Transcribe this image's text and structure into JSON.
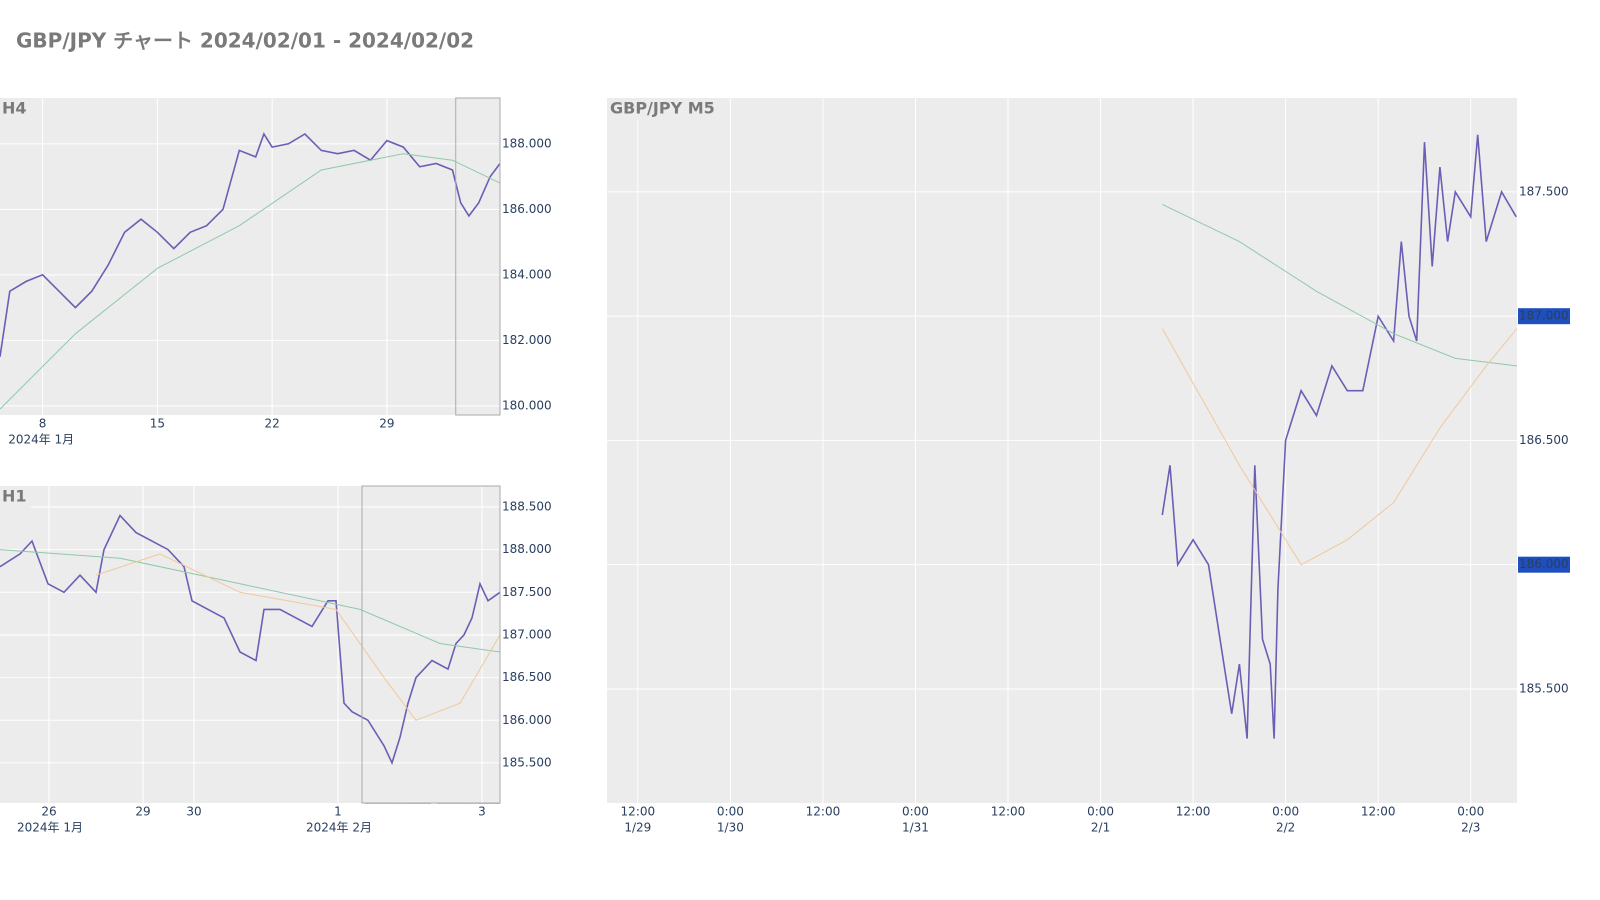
{
  "title": "GBP/JPY チャート 2024/02/01 - 2024/02/02",
  "chart_data": [
    {
      "type": "line",
      "title": "H4",
      "xlim": [
        5.4,
        35.9
      ],
      "xticks": [
        8,
        15,
        22,
        29
      ],
      "x_group_labels": [
        {
          "value": 5.9,
          "label": "2024年 1月"
        }
      ],
      "ylim": [
        179.72,
        189.4
      ],
      "yticks": [
        {
          "value": 188,
          "label": "188.000"
        },
        {
          "value": 186,
          "label": "186.000"
        },
        {
          "value": 184,
          "label": "184.000"
        },
        {
          "value": 182,
          "label": "182.000"
        },
        {
          "value": 180,
          "label": "180.000"
        }
      ],
      "highlight_range": [
        33.2,
        35.9
      ],
      "grid": true,
      "series": [
        {
          "color": "#6a5fb5",
          "x": [
            5.4,
            6,
            7,
            8,
            9,
            10,
            11,
            12,
            13,
            14,
            15,
            16,
            17,
            18,
            19,
            20,
            21,
            21.5,
            22,
            23,
            24,
            25,
            26,
            27,
            28,
            29,
            30,
            31,
            32,
            33,
            33.5,
            34,
            34.6,
            35.3,
            35.9
          ],
          "values": [
            181.5,
            183.5,
            183.8,
            184.0,
            183.5,
            183.0,
            183.5,
            184.3,
            185.3,
            185.7,
            185.3,
            184.8,
            185.3,
            185.5,
            186.0,
            187.8,
            187.6,
            188.3,
            187.9,
            188.0,
            188.3,
            187.8,
            187.7,
            187.8,
            187.5,
            188.1,
            187.9,
            187.3,
            187.4,
            187.2,
            186.2,
            185.8,
            186.2,
            187.0,
            187.4
          ]
        },
        {
          "color": "#8fc9a8",
          "x": [
            5.4,
            10,
            15,
            20,
            25,
            30,
            33,
            35.9
          ],
          "values": [
            179.9,
            182.2,
            184.2,
            185.5,
            187.2,
            187.7,
            187.5,
            186.8
          ]
        }
      ]
    },
    {
      "type": "line",
      "title": "H1",
      "xlim": [
        0,
        125
      ],
      "xticks": [
        {
          "value": 12.25,
          "label": "26"
        },
        {
          "value": 35.75,
          "label": "29"
        },
        {
          "value": 48.5,
          "label": "30"
        },
        {
          "value": 84.5,
          "label": "1"
        },
        {
          "value": 120.5,
          "label": "3"
        }
      ],
      "x_group_labels": [
        {
          "value": 4.25,
          "label": "2024年 1月"
        },
        {
          "value": 76.5,
          "label": "2024年 2月"
        }
      ],
      "ylim": [
        185.03,
        188.746
      ],
      "yticks": [
        {
          "value": 188.5,
          "label": "188.500"
        },
        {
          "value": 188,
          "label": "188.000"
        },
        {
          "value": 187.5,
          "label": "187.500"
        },
        {
          "value": 187,
          "label": "187.000"
        },
        {
          "value": 186.5,
          "label": "186.500"
        },
        {
          "value": 186,
          "label": "186.000"
        },
        {
          "value": 185.5,
          "label": "185.500"
        }
      ],
      "highlight_range": [
        90.5,
        125
      ],
      "grid": true,
      "series": [
        {
          "color": "#6a5fb5",
          "x": [
            0,
            5,
            8,
            12,
            16,
            20,
            24,
            26,
            30,
            34,
            38,
            42,
            46,
            48,
            52,
            56,
            60,
            64,
            66,
            70,
            74,
            78,
            82,
            84,
            86,
            88,
            92,
            96,
            98,
            100,
            102,
            104,
            108,
            112,
            114,
            116,
            118,
            120,
            122,
            125
          ],
          "values": [
            187.8,
            187.95,
            188.1,
            187.6,
            187.5,
            187.7,
            187.5,
            188.0,
            188.4,
            188.2,
            188.1,
            188.0,
            187.8,
            187.4,
            187.3,
            187.2,
            186.8,
            186.7,
            187.3,
            187.3,
            187.2,
            187.1,
            187.4,
            187.4,
            186.2,
            186.1,
            186.0,
            185.7,
            185.5,
            185.8,
            186.2,
            186.5,
            186.7,
            186.6,
            186.9,
            187.0,
            187.2,
            187.6,
            187.4,
            187.5
          ]
        },
        {
          "color": "#8fc9a8",
          "x": [
            0,
            30,
            60,
            90,
            110,
            125
          ],
          "values": [
            188.0,
            187.9,
            187.6,
            187.3,
            186.9,
            186.8
          ]
        },
        {
          "color": "#f0c89a",
          "x": [
            24,
            40,
            60,
            84,
            96,
            104,
            115,
            125
          ],
          "values": [
            187.7,
            187.95,
            187.5,
            187.3,
            186.5,
            186.0,
            186.2,
            187.0
          ]
        }
      ]
    },
    {
      "type": "line",
      "title": "GBP/JPY M5",
      "xlim": [
        8,
        126
      ],
      "xticks": [
        {
          "value": 12,
          "label": "12:00",
          "date": "1/29"
        },
        {
          "value": 24,
          "label": "0:00",
          "date": "1/30"
        },
        {
          "value": 36,
          "label": "12:00"
        },
        {
          "value": 48,
          "label": "0:00",
          "date": "1/31"
        },
        {
          "value": 60,
          "label": "12:00"
        },
        {
          "value": 72,
          "label": "0:00",
          "date": "2/1"
        },
        {
          "value": 84,
          "label": "12:00"
        },
        {
          "value": 96,
          "label": "0:00",
          "date": "2/2"
        },
        {
          "value": 108,
          "label": "12:00"
        },
        {
          "value": 120,
          "label": "0:00",
          "date": "2/3"
        }
      ],
      "ylim": [
        185.041,
        187.878
      ],
      "yticks": [
        {
          "value": 187.5,
          "label": "187.500"
        },
        {
          "value": 187,
          "label": "187.000",
          "highlight": true
        },
        {
          "value": 186.5,
          "label": "186.500"
        },
        {
          "value": 186,
          "label": "186.000",
          "highlight": true
        },
        {
          "value": 185.5,
          "label": "185.500"
        }
      ],
      "grid": true,
      "series": [
        {
          "color": "#6a5fb5",
          "x": [
            80,
            81,
            82,
            84,
            86,
            88,
            89,
            90,
            91,
            92,
            93,
            94,
            94.5,
            95,
            96,
            98,
            100,
            102,
            104,
            106,
            108,
            110,
            111,
            112,
            113,
            114,
            115,
            116,
            117,
            118,
            120,
            120.9,
            122,
            124,
            125.9
          ],
          "values": [
            186.2,
            186.4,
            186.0,
            186.1,
            186.0,
            185.6,
            185.4,
            185.6,
            185.3,
            186.4,
            185.7,
            185.6,
            185.3,
            185.9,
            186.5,
            186.7,
            186.6,
            186.8,
            186.7,
            186.7,
            187.0,
            186.9,
            187.3,
            187.0,
            186.9,
            187.7,
            187.2,
            187.6,
            187.3,
            187.5,
            187.4,
            187.73,
            187.3,
            187.5,
            187.4
          ]
        },
        {
          "color": "#8fc9a8",
          "x": [
            80,
            90,
            100,
            110,
            118,
            126
          ],
          "values": [
            187.45,
            187.3,
            187.1,
            186.93,
            186.83,
            186.8
          ]
        },
        {
          "color": "#f0c89a",
          "x": [
            80,
            90,
            98,
            104,
            110,
            116,
            122,
            126
          ],
          "values": [
            186.95,
            186.4,
            186.0,
            186.1,
            186.25,
            186.55,
            186.8,
            186.95
          ]
        }
      ]
    }
  ]
}
